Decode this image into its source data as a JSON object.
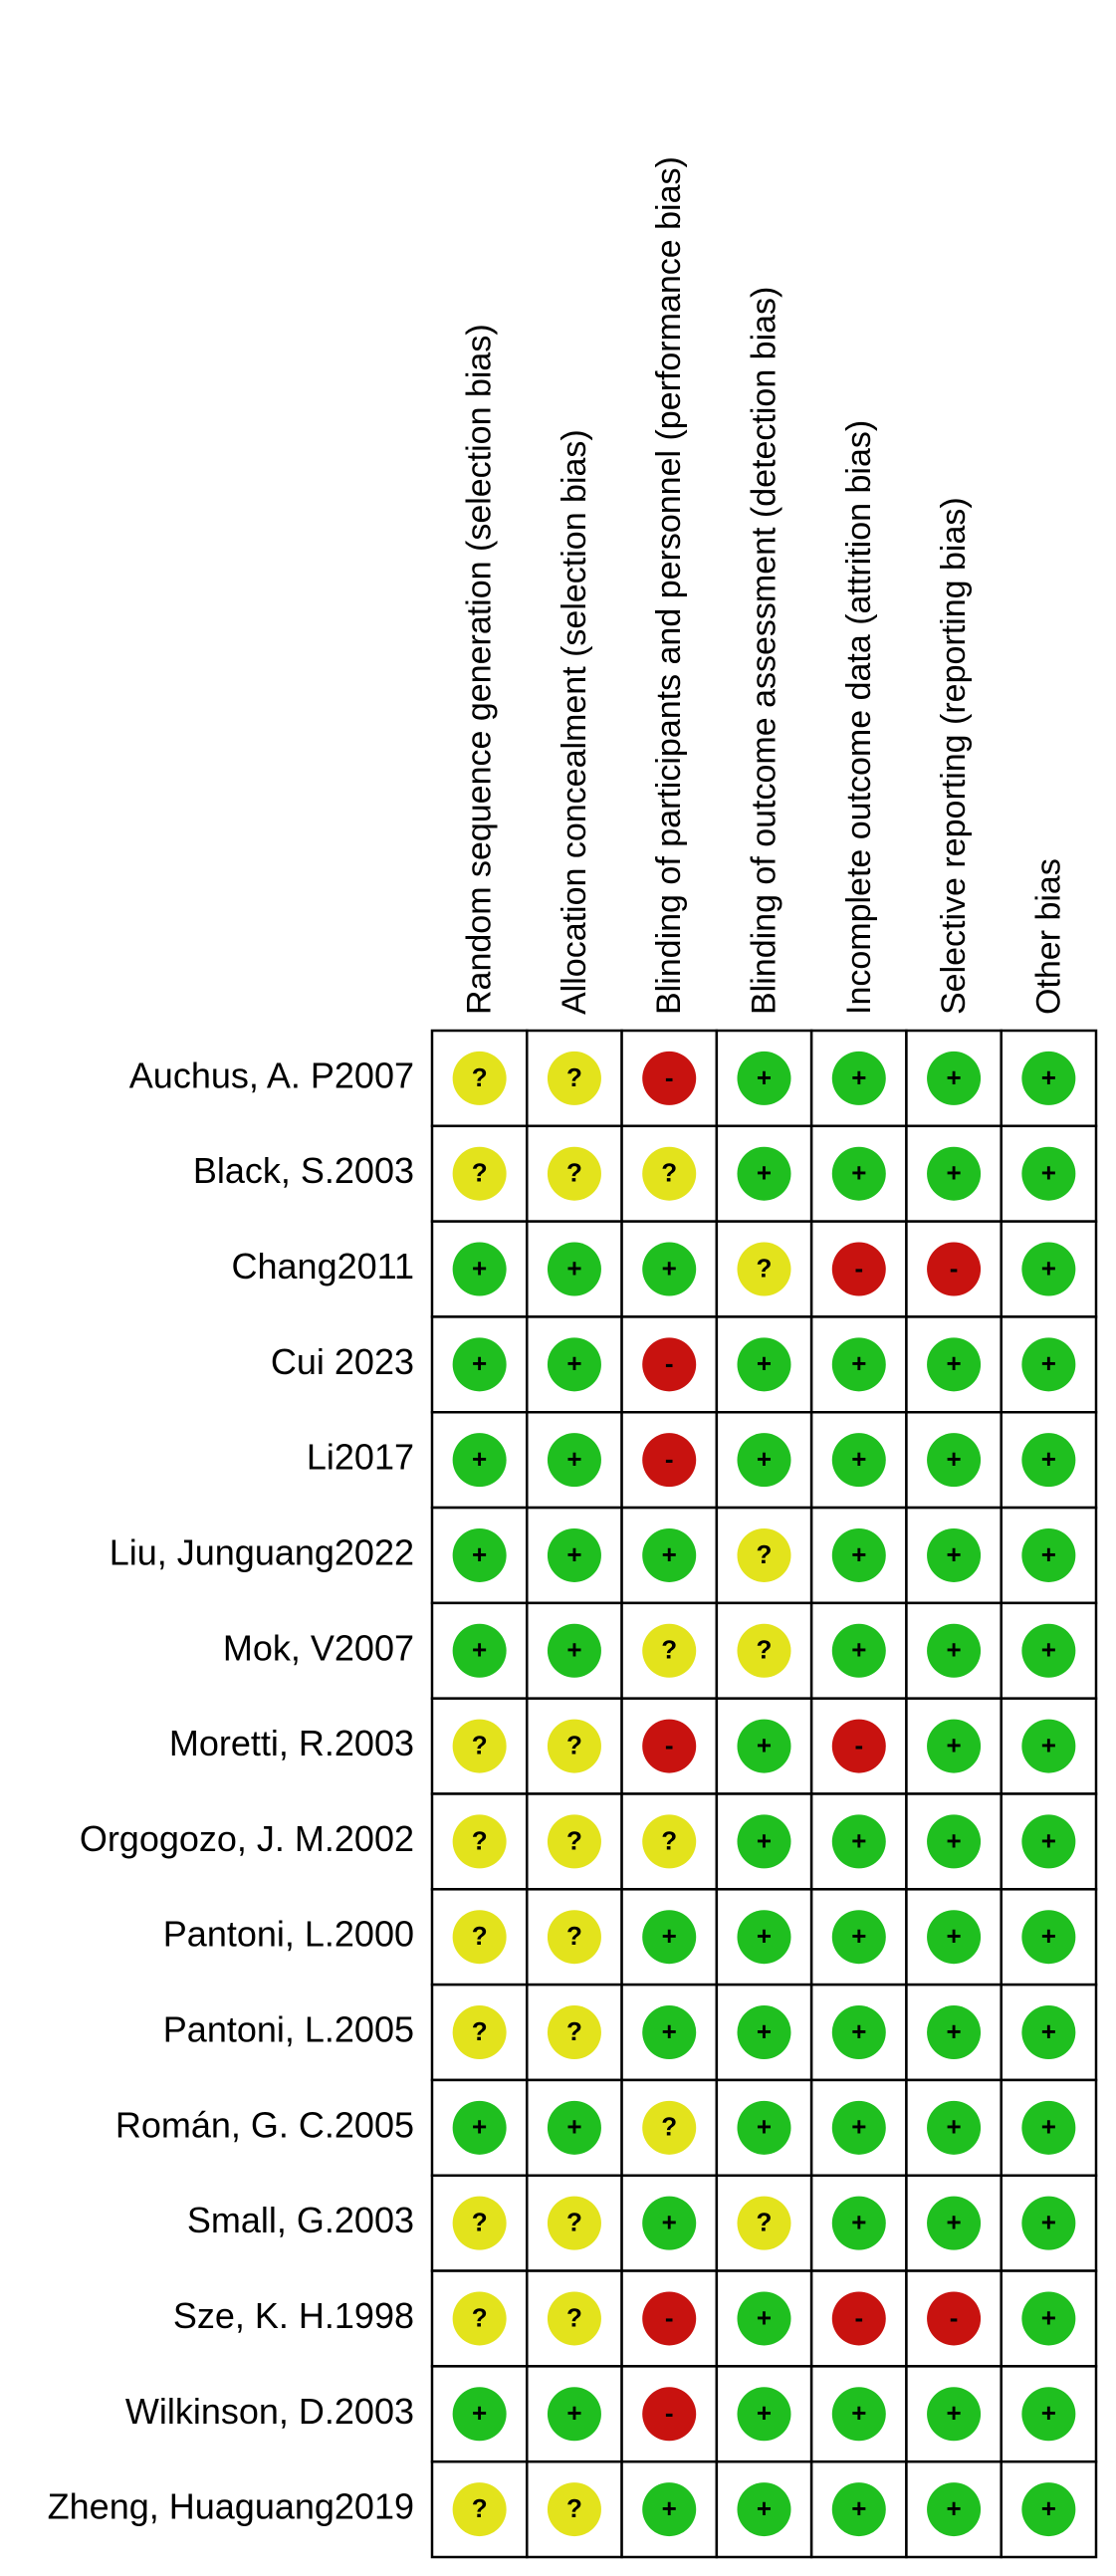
{
  "columns": [
    "Random sequence generation (selection bias)",
    "Allocation concealment (selection bias)",
    "Blinding of participants and personnel (performance bias)",
    "Blinding of outcome assessment (detection bias)",
    "Incomplete outcome data (attrition bias)",
    "Selective reporting (reporting bias)",
    "Other bias"
  ],
  "judgment_colors": {
    "+": "#1fbf1f",
    "?": "#e3e31c",
    "-": "#c8120f"
  },
  "rows": [
    {
      "study": "Auchus, A. P2007",
      "judgments": [
        "?",
        "?",
        "-",
        "+",
        "+",
        "+",
        "+"
      ]
    },
    {
      "study": "Black, S.2003",
      "judgments": [
        "?",
        "?",
        "?",
        "+",
        "+",
        "+",
        "+"
      ]
    },
    {
      "study": "Chang2011",
      "judgments": [
        "+",
        "+",
        "+",
        "?",
        "-",
        "-",
        "+"
      ]
    },
    {
      "study": "Cui 2023",
      "judgments": [
        "+",
        "+",
        "-",
        "+",
        "+",
        "+",
        "+"
      ]
    },
    {
      "study": "Li2017",
      "judgments": [
        "+",
        "+",
        "-",
        "+",
        "+",
        "+",
        "+"
      ]
    },
    {
      "study": "Liu, Junguang2022",
      "judgments": [
        "+",
        "+",
        "+",
        "?",
        "+",
        "+",
        "+"
      ]
    },
    {
      "study": "Mok, V2007",
      "judgments": [
        "+",
        "+",
        "?",
        "?",
        "+",
        "+",
        "+"
      ]
    },
    {
      "study": "Moretti, R.2003",
      "judgments": [
        "?",
        "?",
        "-",
        "+",
        "-",
        "+",
        "+"
      ]
    },
    {
      "study": "Orgogozo, J. M.2002",
      "judgments": [
        "?",
        "?",
        "?",
        "+",
        "+",
        "+",
        "+"
      ]
    },
    {
      "study": "Pantoni, L.2000",
      "judgments": [
        "?",
        "?",
        "+",
        "+",
        "+",
        "+",
        "+"
      ]
    },
    {
      "study": "Pantoni, L.2005",
      "judgments": [
        "?",
        "?",
        "+",
        "+",
        "+",
        "+",
        "+"
      ]
    },
    {
      "study": "Román, G. C.2005",
      "judgments": [
        "+",
        "+",
        "?",
        "+",
        "+",
        "+",
        "+"
      ]
    },
    {
      "study": "Small, G.2003",
      "judgments": [
        "?",
        "?",
        "+",
        "?",
        "+",
        "+",
        "+"
      ]
    },
    {
      "study": "Sze, K. H.1998",
      "judgments": [
        "?",
        "?",
        "-",
        "+",
        "-",
        "-",
        "+"
      ]
    },
    {
      "study": "Wilkinson, D.2003",
      "judgments": [
        "+",
        "+",
        "-",
        "+",
        "+",
        "+",
        "+"
      ]
    },
    {
      "study": "Zheng, Huaguang2019",
      "judgments": [
        "?",
        "?",
        "+",
        "+",
        "+",
        "+",
        "+"
      ]
    }
  ]
}
